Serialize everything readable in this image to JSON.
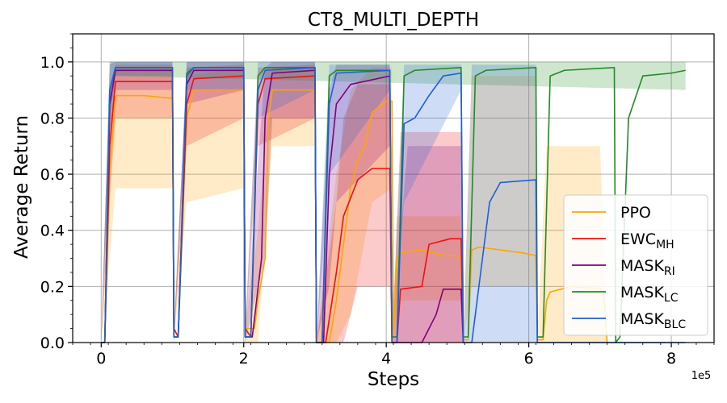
{
  "chart_data": {
    "type": "line",
    "title": "CT8_MULTI_DEPTH",
    "xlabel": "Steps",
    "ylabel": "Average Return",
    "x_multiplier": "1e5",
    "xlim": [
      -0.4,
      8.6
    ],
    "ylim": [
      0.0,
      1.1
    ],
    "xticks": [
      0,
      2,
      4,
      6,
      8
    ],
    "yticks": [
      0.0,
      0.2,
      0.4,
      0.6,
      0.8,
      1.0
    ],
    "xtick_labels": [
      "0",
      "2",
      "4",
      "6",
      "8"
    ],
    "ytick_labels": [
      "0.0",
      "0.2",
      "0.4",
      "0.6",
      "0.8",
      "1.0"
    ],
    "grid": true,
    "legend_position": "lower-right",
    "series": [
      {
        "name": "PPO",
        "sub": "",
        "color": "#ffa500",
        "points": [
          [
            0,
            0
          ],
          [
            0.05,
            0
          ],
          [
            0.12,
            0.6
          ],
          [
            0.2,
            0.88
          ],
          [
            0.6,
            0.88
          ],
          [
            1.0,
            0.87
          ],
          [
            1.02,
            0.02
          ],
          [
            1.08,
            0.02
          ],
          [
            1.2,
            0.8
          ],
          [
            1.3,
            0.9
          ],
          [
            2.0,
            0.9
          ],
          [
            2.02,
            0.05
          ],
          [
            2.15,
            0.05
          ],
          [
            2.2,
            0.15
          ],
          [
            2.3,
            0.3
          ],
          [
            2.35,
            0.8
          ],
          [
            2.4,
            0.9
          ],
          [
            3.0,
            0.9
          ],
          [
            3.02,
            0.0
          ],
          [
            3.2,
            0.0
          ],
          [
            3.3,
            0.15
          ],
          [
            3.4,
            0.35
          ],
          [
            3.5,
            0.55
          ],
          [
            3.6,
            0.65
          ],
          [
            3.7,
            0.7
          ],
          [
            3.8,
            0.82
          ],
          [
            4.0,
            0.86
          ],
          [
            4.08,
            0.86
          ],
          [
            4.1,
            0.01
          ],
          [
            4.15,
            0.3
          ],
          [
            4.2,
            0.32
          ],
          [
            4.5,
            0.33
          ],
          [
            4.8,
            0.31
          ],
          [
            5.0,
            0.31
          ],
          [
            5.05,
            0.3
          ],
          [
            5.08,
            0.01
          ],
          [
            5.15,
            0.01
          ],
          [
            5.2,
            0.33
          ],
          [
            5.3,
            0.34
          ],
          [
            5.6,
            0.33
          ],
          [
            5.9,
            0.32
          ],
          [
            6.1,
            0.31
          ],
          [
            6.12,
            0.01
          ],
          [
            6.2,
            0.01
          ],
          [
            6.25,
            0.15
          ],
          [
            6.3,
            0.18
          ],
          [
            6.6,
            0.2
          ],
          [
            7.0,
            0.19
          ],
          [
            7.05,
            0.18
          ],
          [
            7.1,
            0.0
          ]
        ],
        "band": [
          [
            0,
            0,
            0
          ],
          [
            0.12,
            0.3,
            0.8
          ],
          [
            0.2,
            0.55,
            0.98
          ],
          [
            1.0,
            0.55,
            0.98
          ],
          [
            1.02,
            0,
            0.05
          ],
          [
            1.2,
            0.5,
            0.95
          ],
          [
            2.0,
            0.55,
            0.98
          ],
          [
            2.02,
            0,
            0.05
          ],
          [
            2.2,
            0.0,
            0.4
          ],
          [
            2.4,
            0.7,
            0.98
          ],
          [
            3.0,
            0.7,
            0.98
          ],
          [
            3.02,
            0,
            0
          ],
          [
            3.3,
            0,
            0.6
          ],
          [
            3.5,
            0.1,
            0.9
          ],
          [
            3.8,
            0.5,
            0.98
          ],
          [
            4.08,
            0.55,
            0.98
          ],
          [
            4.1,
            0,
            0.01
          ],
          [
            4.15,
            0.15,
            0.45
          ],
          [
            5.05,
            0.15,
            0.45
          ],
          [
            5.08,
            0,
            0.01
          ],
          [
            5.2,
            0.2,
            0.95
          ],
          [
            6.1,
            0.2,
            0.95
          ],
          [
            6.12,
            0,
            0.01
          ],
          [
            6.25,
            0,
            0.7
          ],
          [
            7.0,
            0,
            0.7
          ],
          [
            7.1,
            0,
            0
          ]
        ]
      },
      {
        "name": "EWC",
        "sub": "MH",
        "color": "#ee1111",
        "points": [
          [
            0,
            0
          ],
          [
            0.05,
            0
          ],
          [
            0.12,
            0.7
          ],
          [
            0.2,
            0.93
          ],
          [
            1.0,
            0.93
          ],
          [
            1.02,
            0.05
          ],
          [
            1.08,
            0.02
          ],
          [
            1.2,
            0.85
          ],
          [
            1.3,
            0.94
          ],
          [
            2.0,
            0.95
          ],
          [
            2.02,
            0.05
          ],
          [
            2.1,
            0.02
          ],
          [
            2.2,
            0.85
          ],
          [
            2.3,
            0.94
          ],
          [
            3.0,
            0.95
          ],
          [
            3.02,
            0.0
          ],
          [
            3.15,
            0.0
          ],
          [
            3.3,
            0.25
          ],
          [
            3.4,
            0.45
          ],
          [
            3.6,
            0.58
          ],
          [
            3.8,
            0.62
          ],
          [
            4.05,
            0.62
          ],
          [
            4.08,
            0.0
          ],
          [
            4.15,
            0.0
          ],
          [
            4.2,
            0.19
          ],
          [
            4.5,
            0.2
          ],
          [
            4.6,
            0.35
          ],
          [
            4.9,
            0.37
          ],
          [
            5.05,
            0.37
          ],
          [
            5.08,
            0.0
          ]
        ],
        "band": [
          [
            0,
            0,
            0
          ],
          [
            0.12,
            0.5,
            0.9
          ],
          [
            0.2,
            0.8,
            0.99
          ],
          [
            1.0,
            0.8,
            0.99
          ],
          [
            1.02,
            0,
            0.05
          ],
          [
            1.2,
            0.7,
            0.98
          ],
          [
            2.0,
            0.8,
            0.99
          ],
          [
            2.02,
            0,
            0.05
          ],
          [
            2.2,
            0.7,
            0.98
          ],
          [
            3.0,
            0.8,
            0.99
          ],
          [
            3.02,
            0,
            0
          ],
          [
            3.3,
            0,
            0.5
          ],
          [
            3.4,
            0,
            0.8
          ],
          [
            3.6,
            0.2,
            0.92
          ],
          [
            4.05,
            0.2,
            0.92
          ],
          [
            4.08,
            0,
            0
          ],
          [
            4.2,
            0,
            0.75
          ],
          [
            5.05,
            0,
            0.75
          ],
          [
            5.08,
            0,
            0
          ]
        ]
      },
      {
        "name": "MASK",
        "sub": "RI",
        "color": "#800080",
        "points": [
          [
            0,
            0
          ],
          [
            0.05,
            0
          ],
          [
            0.12,
            0.85
          ],
          [
            0.2,
            0.97
          ],
          [
            1.0,
            0.97
          ],
          [
            1.02,
            0.02
          ],
          [
            1.08,
            0.02
          ],
          [
            1.2,
            0.92
          ],
          [
            1.3,
            0.97
          ],
          [
            2.0,
            0.97
          ],
          [
            2.02,
            0.02
          ],
          [
            2.12,
            0.02
          ],
          [
            2.25,
            0.3
          ],
          [
            2.3,
            0.8
          ],
          [
            2.4,
            0.96
          ],
          [
            3.0,
            0.97
          ],
          [
            3.02,
            0.0
          ],
          [
            3.12,
            0.0
          ],
          [
            3.2,
            0.6
          ],
          [
            3.3,
            0.85
          ],
          [
            3.5,
            0.92
          ],
          [
            4.05,
            0.95
          ],
          [
            4.08,
            0.0
          ],
          [
            4.2,
            0.0
          ],
          [
            4.5,
            0.0
          ],
          [
            4.7,
            0.1
          ],
          [
            4.8,
            0.19
          ],
          [
            5.05,
            0.19
          ],
          [
            5.08,
            0.0
          ]
        ],
        "band": [
          [
            0,
            0,
            0
          ],
          [
            0.12,
            0.7,
            0.99
          ],
          [
            0.2,
            0.9,
            1.0
          ],
          [
            1.0,
            0.9,
            1.0
          ],
          [
            1.02,
            0,
            0.02
          ],
          [
            1.2,
            0.85,
            1.0
          ],
          [
            2.0,
            0.9,
            1.0
          ],
          [
            2.02,
            0,
            0.02
          ],
          [
            2.3,
            0.3,
            0.98
          ],
          [
            2.4,
            0.8,
            1.0
          ],
          [
            3.0,
            0.8,
            1.0
          ],
          [
            3.02,
            0,
            0
          ],
          [
            3.2,
            0.2,
            0.9
          ],
          [
            3.3,
            0.5,
            0.99
          ],
          [
            4.05,
            0.7,
            0.99
          ],
          [
            4.08,
            0,
            0
          ],
          [
            4.3,
            0,
            0.7
          ],
          [
            5.05,
            0,
            0.7
          ],
          [
            5.08,
            0,
            0
          ]
        ]
      },
      {
        "name": "MASK",
        "sub": "LC",
        "color": "#228b22",
        "points": [
          [
            0,
            0
          ],
          [
            0.05,
            0
          ],
          [
            0.12,
            0.9
          ],
          [
            0.2,
            0.98
          ],
          [
            1.0,
            0.98
          ],
          [
            1.02,
            0.02
          ],
          [
            1.08,
            0.02
          ],
          [
            1.2,
            0.96
          ],
          [
            1.3,
            0.98
          ],
          [
            2.0,
            0.98
          ],
          [
            2.02,
            0.02
          ],
          [
            2.1,
            0.02
          ],
          [
            2.2,
            0.95
          ],
          [
            2.3,
            0.98
          ],
          [
            3.0,
            0.98
          ],
          [
            3.02,
            0.0
          ],
          [
            3.1,
            0.0
          ],
          [
            3.2,
            0.95
          ],
          [
            3.3,
            0.97
          ],
          [
            4.05,
            0.97
          ],
          [
            4.08,
            0.02
          ],
          [
            4.15,
            0.02
          ],
          [
            4.25,
            0.95
          ],
          [
            4.4,
            0.97
          ],
          [
            5.05,
            0.98
          ],
          [
            5.08,
            0.02
          ],
          [
            5.15,
            0.02
          ],
          [
            5.25,
            0.95
          ],
          [
            5.4,
            0.97
          ],
          [
            6.1,
            0.98
          ],
          [
            6.12,
            0.02
          ],
          [
            6.2,
            0.02
          ],
          [
            6.3,
            0.95
          ],
          [
            6.5,
            0.97
          ],
          [
            7.2,
            0.98
          ],
          [
            7.22,
            0.0
          ],
          [
            7.28,
            0.02
          ],
          [
            7.4,
            0.8
          ],
          [
            7.6,
            0.95
          ],
          [
            8.0,
            0.96
          ],
          [
            8.2,
            0.97
          ]
        ],
        "band": [
          [
            0,
            0,
            0
          ],
          [
            0.12,
            0.8,
            1.0
          ],
          [
            0.2,
            0.95,
            1.0
          ],
          [
            8.2,
            0.9,
            1.0
          ]
        ]
      },
      {
        "name": "MASK",
        "sub": "BLC",
        "color": "#1f5fd6",
        "points": [
          [
            0,
            0
          ],
          [
            0.05,
            0
          ],
          [
            0.12,
            0.9
          ],
          [
            0.2,
            0.98
          ],
          [
            1.0,
            0.98
          ],
          [
            1.02,
            0.02
          ],
          [
            1.08,
            0.02
          ],
          [
            1.2,
            0.95
          ],
          [
            1.3,
            0.98
          ],
          [
            2.0,
            0.98
          ],
          [
            2.02,
            0.02
          ],
          [
            2.1,
            0.02
          ],
          [
            2.2,
            0.9
          ],
          [
            2.3,
            0.97
          ],
          [
            3.0,
            0.98
          ],
          [
            3.02,
            0.0
          ],
          [
            3.1,
            0.0
          ],
          [
            3.2,
            0.85
          ],
          [
            3.3,
            0.96
          ],
          [
            4.05,
            0.97
          ],
          [
            4.08,
            0.0
          ],
          [
            4.15,
            0.0
          ],
          [
            4.25,
            0.78
          ],
          [
            4.4,
            0.8
          ],
          [
            4.6,
            0.88
          ],
          [
            4.8,
            0.95
          ],
          [
            5.05,
            0.96
          ],
          [
            5.08,
            0.0
          ],
          [
            5.2,
            0.0
          ],
          [
            5.35,
            0.3
          ],
          [
            5.45,
            0.5
          ],
          [
            5.6,
            0.57
          ],
          [
            6.1,
            0.58
          ],
          [
            6.12,
            0.0
          ],
          [
            7.0,
            0.0
          ],
          [
            8.2,
            0.0
          ]
        ],
        "band": [
          [
            0,
            0,
            0
          ],
          [
            0.12,
            0.8,
            1.0
          ],
          [
            0.2,
            0.95,
            1.0
          ],
          [
            1.0,
            0.95,
            1.0
          ],
          [
            1.02,
            0,
            0.02
          ],
          [
            1.2,
            0.9,
            1.0
          ],
          [
            2.0,
            0.9,
            1.0
          ],
          [
            2.02,
            0,
            0.02
          ],
          [
            2.2,
            0.8,
            1.0
          ],
          [
            3.0,
            0.9,
            1.0
          ],
          [
            3.02,
            0,
            0
          ],
          [
            3.2,
            0.6,
            0.99
          ],
          [
            4.05,
            0.9,
            0.99
          ],
          [
            4.08,
            0,
            0
          ],
          [
            4.25,
            0.5,
            0.99
          ],
          [
            5.05,
            0.9,
            0.99
          ],
          [
            5.08,
            0,
            0
          ],
          [
            5.2,
            0,
            0.99
          ],
          [
            6.1,
            0,
            0.99
          ],
          [
            6.12,
            0,
            0
          ]
        ]
      }
    ]
  }
}
